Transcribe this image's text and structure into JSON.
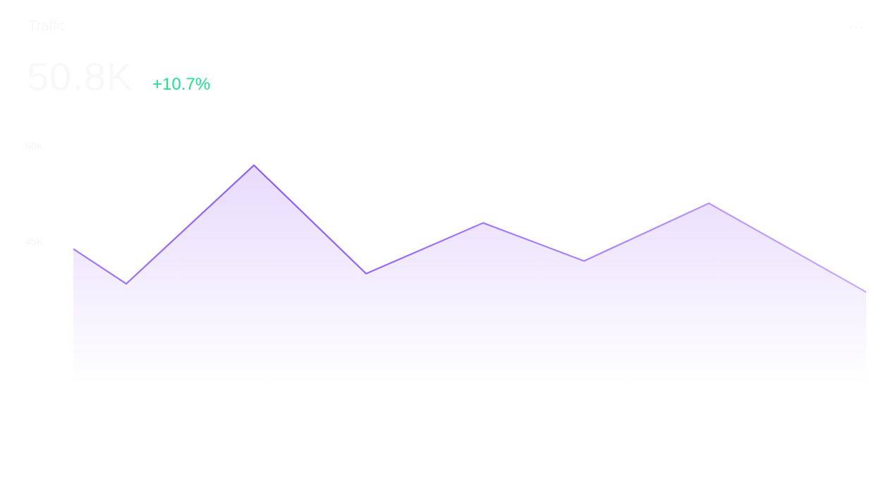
{
  "card": {
    "title": "Traffic",
    "value": "50.8K",
    "change": "+10.7%",
    "change_color": "#1de28c",
    "menu_icon": "more-icon"
  },
  "chart_data": {
    "type": "area",
    "title": "",
    "xlabel": "",
    "ylabel": "",
    "y_ticks": [
      "60K",
      "45K"
    ],
    "y_tick_values": [
      60,
      45
    ],
    "x": [
      1,
      2,
      3,
      4,
      5,
      6,
      7,
      8
    ],
    "values": [
      43.9,
      38.4,
      57.1,
      40.0,
      48.0,
      42.0,
      51.1,
      37.1
    ],
    "ylim": [
      22.5,
      60
    ],
    "grid": false,
    "line_color": "#8b5cf6",
    "fill_color": "#e9ddfd"
  }
}
